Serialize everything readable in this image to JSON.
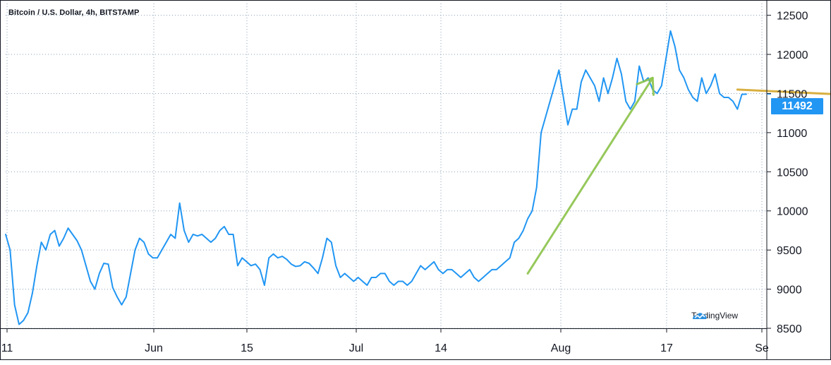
{
  "chart_data": {
    "type": "line",
    "title": "Bitcoin / U.S. Dollar, 4h, BITSTAMP",
    "x_tick_labels": [
      "11",
      "Jun",
      "15",
      "Jul",
      "14",
      "Aug",
      "17",
      "Se"
    ],
    "y_tick_labels": [
      "8500",
      "9000",
      "9500",
      "10000",
      "10500",
      "11000",
      "11500",
      "12000",
      "12500"
    ],
    "ylim": [
      8500,
      12650
    ],
    "grid": true,
    "last_price": "11492",
    "colors": {
      "line": "#2196f3",
      "grid": "#8aa1b8",
      "axis": "#131722",
      "badge": "#2196f3",
      "green_arrow": "#8bc34a",
      "gold_arrow": "#d4a72c"
    },
    "series": [
      {
        "values": [
          9700,
          9500,
          8800,
          8550,
          8600,
          8700,
          8950,
          9300,
          9600,
          9500,
          9700,
          9750,
          9550,
          9650,
          9780,
          9700,
          9620,
          9500,
          9300,
          9100,
          9000,
          9200,
          9330,
          9320,
          9020,
          8900,
          8800,
          8900,
          9200,
          9500,
          9650,
          9600,
          9450,
          9400,
          9400,
          9500,
          9600,
          9700,
          9650,
          10100,
          9750,
          9600,
          9700,
          9680,
          9700,
          9650,
          9600,
          9650,
          9750,
          9800,
          9700,
          9700,
          9300,
          9400,
          9350,
          9300,
          9320,
          9250,
          9050,
          9400,
          9450,
          9400,
          9420,
          9380,
          9320,
          9290,
          9300,
          9350,
          9330,
          9270,
          9200,
          9400,
          9650,
          9600,
          9300,
          9150,
          9200,
          9150,
          9100,
          9150,
          9100,
          9050,
          9150,
          9150,
          9200,
          9200,
          9100,
          9050,
          9100,
          9100,
          9050,
          9100,
          9200,
          9300,
          9250,
          9300,
          9350,
          9250,
          9200,
          9250,
          9250,
          9200,
          9150,
          9200,
          9250,
          9150,
          9100,
          9150,
          9200,
          9250,
          9250,
          9300,
          9350,
          9400,
          9600,
          9650,
          9750,
          9900,
          10000,
          10300,
          11000,
          11200,
          11400,
          11600,
          11800,
          11450,
          11100,
          11300,
          11300,
          11650,
          11800,
          11700,
          11600,
          11400,
          11700,
          11500,
          11700,
          11950,
          11750,
          11400,
          11300,
          11400,
          11850,
          11650,
          11700,
          11550,
          11500,
          11600,
          11950,
          12300,
          12100,
          11800,
          11700,
          11550,
          11450,
          11400,
          11700,
          11500,
          11600,
          11750,
          11500,
          11450,
          11450,
          11400,
          11300,
          11490,
          11492
        ]
      }
    ],
    "annotations": [
      {
        "type": "arrow",
        "color": "green",
        "from": {
          "x": 117,
          "y": 9200
        },
        "to": {
          "x": 145,
          "y": 11700
        }
      },
      {
        "type": "arrow",
        "color": "gold",
        "from": {
          "x": 164,
          "y": 11550
        },
        "to": {
          "x": 194,
          "y": 11470
        }
      }
    ]
  },
  "watermark": {
    "text": "TradingView"
  }
}
